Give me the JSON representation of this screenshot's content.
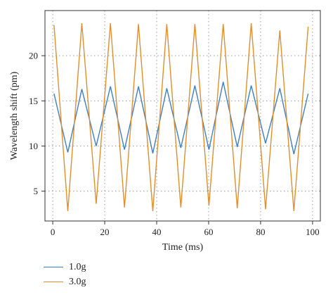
{
  "chart_data": {
    "type": "line",
    "xlabel": "Time (ms)",
    "ylabel": "Wavelength shift (pm)",
    "xlim": [
      -3,
      103
    ],
    "ylim": [
      1.7,
      25.0
    ],
    "xticks": [
      0,
      20,
      40,
      60,
      80,
      100
    ],
    "yticks": [
      5,
      10,
      15,
      20
    ],
    "grid": true,
    "legend_placement": "bottom-left",
    "series": [
      {
        "name": "1.0g",
        "color": "#3f7fc0",
        "x": [
          0.5,
          5.8,
          11.2,
          16.7,
          22.2,
          27.6,
          33.0,
          38.5,
          43.9,
          49.3,
          54.7,
          60.1,
          65.6,
          71.0,
          76.4,
          81.9,
          87.4,
          92.8,
          98.3
        ],
        "y": [
          15.8,
          9.3,
          16.3,
          10.0,
          16.6,
          9.6,
          16.6,
          9.2,
          16.4,
          9.8,
          16.7,
          9.6,
          17.1,
          9.9,
          16.7,
          10.3,
          16.4,
          9.1,
          15.8
        ]
      },
      {
        "name": "3.0g",
        "color": "#e08f2e",
        "x": [
          0.5,
          5.8,
          11.2,
          16.7,
          22.2,
          27.6,
          33.0,
          38.5,
          43.9,
          49.3,
          54.7,
          60.1,
          65.6,
          71.0,
          76.4,
          81.9,
          87.4,
          92.8,
          98.3
        ],
        "y": [
          23.4,
          2.8,
          23.6,
          3.6,
          23.6,
          3.2,
          23.5,
          2.8,
          23.5,
          3.2,
          23.5,
          3.4,
          23.5,
          3.1,
          23.6,
          3.0,
          22.8,
          2.8,
          23.2
        ]
      }
    ]
  }
}
